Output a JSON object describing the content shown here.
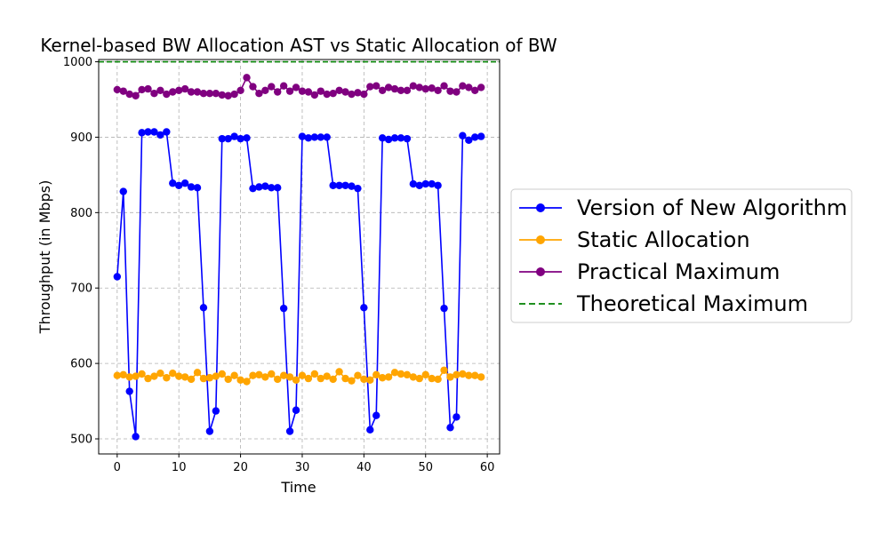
{
  "chart_data": {
    "type": "line",
    "title": "Kernel-based BW Allocation AST vs Static Allocation of BW",
    "xlabel": "Time",
    "ylabel": "Throughput (in Mbps)",
    "xlim": [
      -3,
      62
    ],
    "ylim": [
      480,
      1003
    ],
    "xticks": [
      "0",
      "10",
      "20",
      "30",
      "40",
      "50",
      "60"
    ],
    "yticks": [
      "500",
      "600",
      "700",
      "800",
      "900",
      "1000"
    ],
    "grid": true,
    "legend_position": "outside-right",
    "x": [
      0,
      1,
      2,
      3,
      4,
      5,
      6,
      7,
      8,
      9,
      10,
      11,
      12,
      13,
      14,
      15,
      16,
      17,
      18,
      19,
      20,
      21,
      22,
      23,
      24,
      25,
      26,
      27,
      28,
      29,
      30,
      31,
      32,
      33,
      34,
      35,
      36,
      37,
      38,
      39,
      40,
      41,
      42,
      43,
      44,
      45,
      46,
      47,
      48,
      49,
      50,
      51,
      52,
      53,
      54,
      55,
      56,
      57,
      58,
      59
    ],
    "series": [
      {
        "name": "Version of New Algorithm",
        "color": "#0000ff",
        "style": "solid",
        "marker": true,
        "values": [
          715,
          828,
          563,
          503,
          906,
          907,
          907,
          903,
          907,
          839,
          836,
          839,
          834,
          833,
          674,
          510,
          537,
          898,
          898,
          901,
          898,
          899,
          832,
          834,
          835,
          833,
          833,
          673,
          510,
          538,
          901,
          899,
          900,
          900,
          900,
          836,
          836,
          836,
          835,
          832,
          674,
          512,
          531,
          899,
          897,
          899,
          899,
          898,
          838,
          836,
          838,
          838,
          836,
          673,
          515,
          529,
          902,
          896,
          900,
          901
        ]
      },
      {
        "name": "Static Allocation",
        "color": "#ffa500",
        "style": "solid",
        "marker": true,
        "values": [
          584,
          585,
          582,
          583,
          586,
          580,
          583,
          587,
          581,
          587,
          583,
          582,
          579,
          588,
          580,
          581,
          583,
          586,
          579,
          584,
          578,
          576,
          584,
          585,
          582,
          586,
          579,
          584,
          582,
          578,
          584,
          580,
          586,
          580,
          583,
          579,
          589,
          580,
          577,
          584,
          579,
          578,
          585,
          581,
          582,
          588,
          586,
          585,
          582,
          580,
          585,
          580,
          579,
          591,
          582,
          585,
          586,
          584,
          584,
          582
        ]
      },
      {
        "name": "Practical Maximum",
        "color": "#800080",
        "style": "solid",
        "marker": true,
        "values": [
          963,
          961,
          957,
          955,
          963,
          964,
          958,
          962,
          957,
          960,
          962,
          964,
          960,
          960,
          958,
          958,
          958,
          956,
          955,
          957,
          962,
          979,
          967,
          958,
          962,
          967,
          960,
          968,
          961,
          966,
          961,
          960,
          956,
          961,
          957,
          958,
          962,
          960,
          957,
          959,
          957,
          967,
          968,
          962,
          966,
          964,
          962,
          962,
          968,
          966,
          964,
          965,
          962,
          968,
          961,
          960,
          968,
          966,
          962,
          966
        ]
      },
      {
        "name": "Theoretical Maximum",
        "color": "#008000",
        "style": "dashed",
        "marker": false,
        "constant": 1000
      }
    ]
  }
}
